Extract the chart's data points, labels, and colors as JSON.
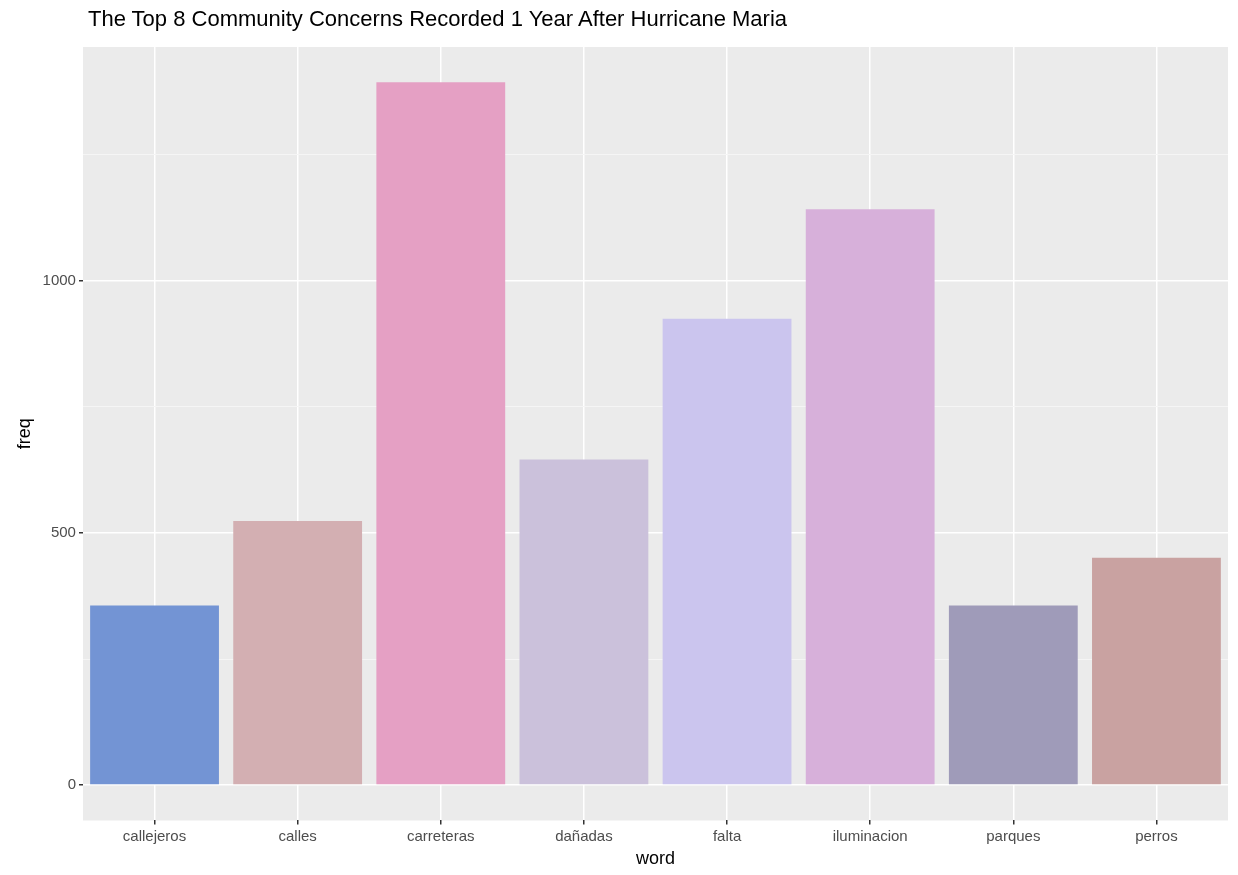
{
  "chart_data": {
    "type": "bar",
    "title": "The Top 8 Community Concerns Recorded 1 Year After Hurricane Maria",
    "xlabel": "word",
    "ylabel": "freq",
    "categories": [
      "callejeros",
      "calles",
      "carreteras",
      "dañadas",
      "falta",
      "iluminacion",
      "parques",
      "perros"
    ],
    "values": [
      356,
      524,
      1394,
      646,
      925,
      1142,
      356,
      451
    ],
    "colors": [
      "#7394d4",
      "#d3afb2",
      "#e5a0c4",
      "#cbc1db",
      "#cbc5ee",
      "#d7b0da",
      "#9f9bb9",
      "#c9a2a1"
    ],
    "ylim": [
      -70,
      1464
    ],
    "yticks": [
      0,
      {
        "value": 250,
        "label": null
      },
      500,
      {
        "value": 750,
        "label": null
      },
      1000,
      {
        "value": 1250,
        "label": null
      }
    ],
    "grid": true,
    "legend": false
  }
}
